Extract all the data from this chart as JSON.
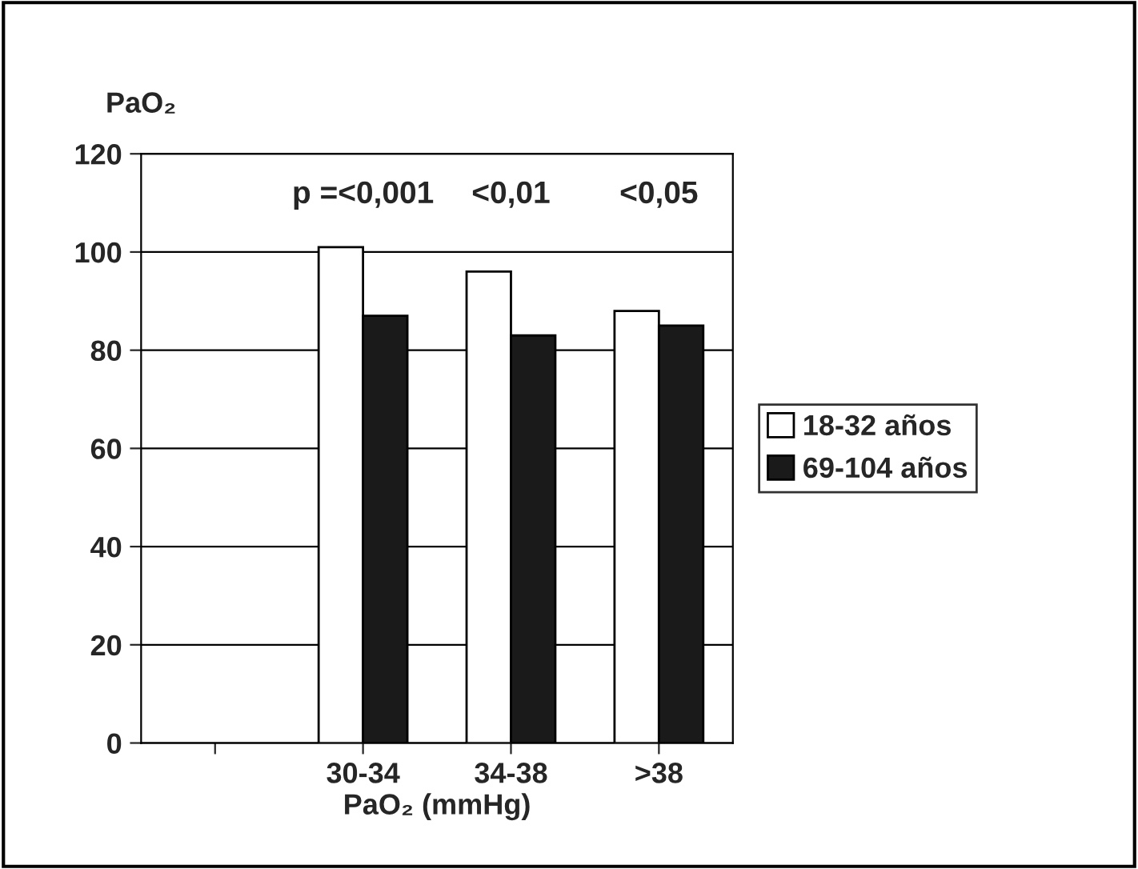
{
  "chart_data": {
    "type": "bar",
    "ylabel": "PaO₂",
    "xlabel": "PaO₂ (mmHg)",
    "categories": [
      null,
      "30-34",
      "34-38",
      ">38"
    ],
    "series": [
      {
        "name": "18-32 años",
        "color": "#ffffff",
        "values": [
          null,
          101,
          96,
          88
        ]
      },
      {
        "name": "69-104 años",
        "color": "#1a1a1a",
        "values": [
          null,
          87,
          83,
          85
        ]
      }
    ],
    "ylim": [
      0,
      120
    ],
    "yticks": [
      0,
      20,
      40,
      60,
      80,
      100,
      120
    ],
    "grid": "y",
    "legend": "right",
    "annotations": [
      "p =<0,001",
      "<0,01",
      "<0,05"
    ]
  }
}
